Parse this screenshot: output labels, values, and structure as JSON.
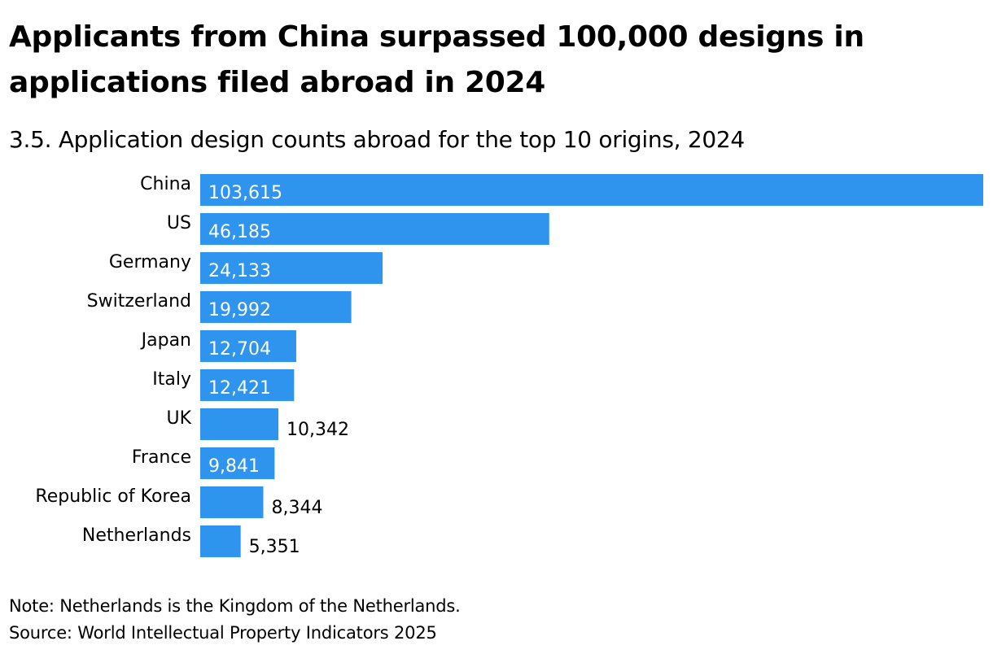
{
  "header": {
    "title": "Applicants from China surpassed 100,000 designs in applications filed abroad in 2024",
    "subtitle": "3.5. Application design counts abroad for the top 10 origins, 2024"
  },
  "footer": {
    "note": "Note: Netherlands is the Kingdom of the Netherlands.",
    "source": "Source: World Intellectual Property Indicators 2025"
  },
  "colors": {
    "bar": "#2e94ee",
    "label_inside": "#ffffff",
    "label_outside": "#000000"
  },
  "chart_data": {
    "type": "bar",
    "orientation": "horizontal",
    "title": "Applicants from China surpassed 100,000 designs in applications filed abroad in 2024",
    "subtitle": "3.5. Application design counts abroad for the top 10 origins, 2024",
    "categories": [
      "China",
      "US",
      "Germany",
      "Switzerland",
      "Japan",
      "Italy",
      "UK",
      "France",
      "Republic of Korea",
      "Netherlands"
    ],
    "values": [
      103615,
      46185,
      24133,
      19992,
      12704,
      12421,
      10342,
      9841,
      8344,
      5351
    ],
    "value_labels": [
      "103,615",
      "46,185",
      "24,133",
      "19,992",
      "12,704",
      "12,421",
      "10,342",
      "9,841",
      "8,344",
      "5,351"
    ],
    "label_inside": [
      true,
      true,
      true,
      true,
      true,
      true,
      false,
      true,
      false,
      false
    ],
    "xlim": [
      0,
      103615
    ],
    "grid": false,
    "legend": "none"
  }
}
